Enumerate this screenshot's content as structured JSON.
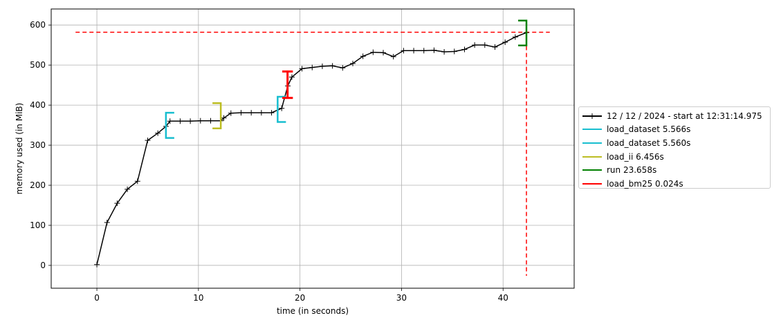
{
  "chart_data": {
    "type": "line",
    "xlabel": "time (in seconds)",
    "ylabel": "memory used (in MiB)",
    "xlim": [
      -4.5,
      47
    ],
    "ylim": [
      -57,
      640
    ],
    "xticks": [
      0,
      10,
      20,
      30,
      40
    ],
    "yticks": [
      0,
      100,
      200,
      300,
      400,
      500,
      600
    ],
    "grid": true,
    "legend_position": "right, outside plot area",
    "series": [
      {
        "name": "12 / 12 / 2024 - start at 12:31:14.975",
        "color": "#000000",
        "marker": "+",
        "x": [
          0,
          1.0,
          2.0,
          3.0,
          4.0,
          5.0,
          6.0,
          6.8,
          7.2,
          8.2,
          9.2,
          10.2,
          11.2,
          12.2,
          12.5,
          13.2,
          14.2,
          15.2,
          16.2,
          17.2,
          18.2,
          18.8,
          19.2,
          20.2,
          21.2,
          22.2,
          23.2,
          24.2,
          25.2,
          26.2,
          27.2,
          28.2,
          29.2,
          30.2,
          31.2,
          32.2,
          33.2,
          34.2,
          35.2,
          36.2,
          37.2,
          38.2,
          39.2,
          40.2,
          41.2,
          42.3
        ],
        "y": [
          2,
          107,
          155,
          190,
          210,
          312,
          330,
          347,
          360,
          360,
          360,
          361,
          361,
          361,
          368,
          380,
          381,
          381,
          381,
          381,
          392,
          448,
          470,
          491,
          494,
          497,
          498,
          493,
          504,
          522,
          532,
          531,
          521,
          536,
          536,
          536,
          537,
          533,
          534,
          539,
          550,
          550,
          545,
          557,
          570,
          581
        ]
      }
    ],
    "markers": [
      {
        "name": "load_dataset 5.566s",
        "color": "#17becf",
        "kind": "open-bracket",
        "x": 6.8,
        "y_low": 318,
        "y_high": 381
      },
      {
        "name": "load_dataset 5.560s",
        "color": "#17becf",
        "kind": "open-bracket",
        "x": 17.8,
        "y_low": 358,
        "y_high": 421
      },
      {
        "name": "load_ii 6.456s",
        "color": "#bcbd22",
        "kind": "close-bracket",
        "x": 12.2,
        "y_low": 342,
        "y_high": 405
      },
      {
        "name": "run 23.658s",
        "color": "#008000",
        "kind": "close-bracket",
        "x": 42.3,
        "y_low": 549,
        "y_high": 611
      },
      {
        "name": "load_bm25 0.024s",
        "color": "#ff0000",
        "kind": "i-beam",
        "x_low": 18.25,
        "x_high": 19.3,
        "y_low": 418,
        "y_high": 484
      }
    ],
    "max_lines": {
      "color": "#ff0000",
      "style": "dashed",
      "y_max": 582,
      "x_max": 42.3,
      "h_x_start": -2.1,
      "h_x_end": 44.6
    }
  },
  "legend": {
    "entries": [
      {
        "label": "12 / 12 / 2024 - start at 12:31:14.975",
        "color": "#000000",
        "marker": "+"
      },
      {
        "label": "load_dataset 5.566s",
        "color": "#17becf"
      },
      {
        "label": "load_dataset 5.560s",
        "color": "#17becf"
      },
      {
        "label": "load_ii 6.456s",
        "color": "#bcbd22"
      },
      {
        "label": "run 23.658s",
        "color": "#008000"
      },
      {
        "label": "load_bm25 0.024s",
        "color": "#ff0000"
      }
    ]
  }
}
